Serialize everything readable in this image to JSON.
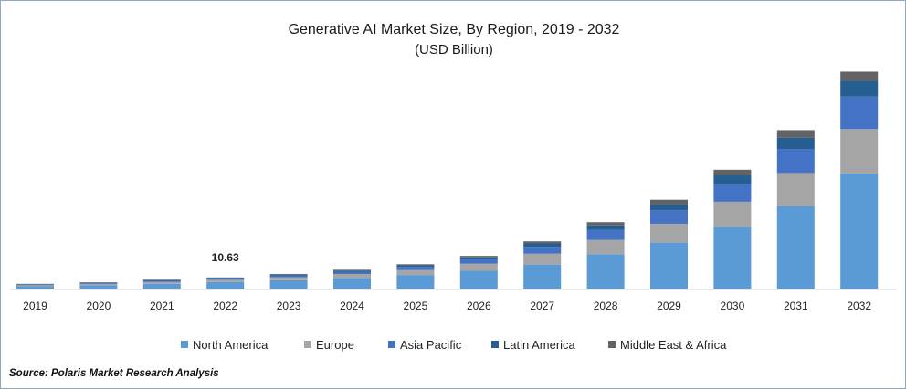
{
  "chart_data": {
    "type": "bar",
    "stacked": true,
    "title": "Generative AI Market Size, By Region, 2019 - 2032",
    "subtitle": "(USD Billion)",
    "xlabel": "",
    "ylabel": "",
    "ylim": [
      0,
      240
    ],
    "grid": false,
    "legend_position": "bottom",
    "categories": [
      "2019",
      "2020",
      "2021",
      "2022",
      "2023",
      "2024",
      "2025",
      "2026",
      "2027",
      "2028",
      "2029",
      "2030",
      "2031",
      "2032"
    ],
    "series": [
      {
        "name": "North America",
        "color": "#5b9bd5",
        "values": [
          2.2,
          3.0,
          4.5,
          6.2,
          8.0,
          10.2,
          13.0,
          17.0,
          23.0,
          33.0,
          44.0,
          59.0,
          79.0,
          110.0
        ]
      },
      {
        "name": "Europe",
        "color": "#a5a5a5",
        "values": [
          1.0,
          1.3,
          1.8,
          2.2,
          2.9,
          3.7,
          4.8,
          6.8,
          10.4,
          13.5,
          18.0,
          24.0,
          31.5,
          42.5
        ]
      },
      {
        "name": "Asia Pacific",
        "color": "#4472c4",
        "values": [
          0.6,
          0.8,
          1.1,
          1.2,
          1.7,
          2.2,
          3.0,
          4.1,
          6.5,
          9.5,
          12.8,
          17.0,
          23.0,
          31.0
        ]
      },
      {
        "name": "Latin America",
        "color": "#255e91",
        "values": [
          0.4,
          0.5,
          0.7,
          0.6,
          0.8,
          1.1,
          1.5,
          2.0,
          3.3,
          4.5,
          6.0,
          8.2,
          10.8,
          15.0
        ]
      },
      {
        "name": "Middle East & Africa",
        "color": "#636363",
        "values": [
          0.3,
          0.35,
          0.45,
          0.43,
          0.6,
          0.8,
          1.0,
          1.4,
          2.0,
          3.0,
          4.1,
          5.4,
          7.2,
          8.8
        ]
      }
    ],
    "annotations": [
      {
        "category": "2022",
        "text": "10.63"
      }
    ]
  },
  "source": "Source: Polaris  Market Research Analysis"
}
